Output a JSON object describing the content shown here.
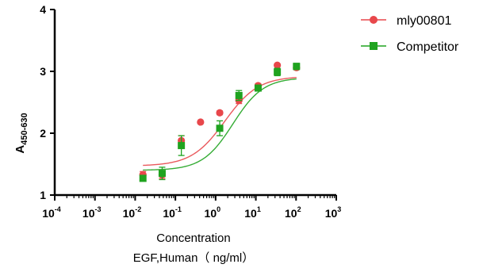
{
  "chart_data": {
    "type": "scatter",
    "x_scale": "log",
    "xlim": [
      0.0001,
      1000
    ],
    "ylim": [
      1,
      4
    ],
    "x_ticks": [
      {
        "base": "10",
        "exp": "-4"
      },
      {
        "base": "10",
        "exp": "-3"
      },
      {
        "base": "10",
        "exp": "-2"
      },
      {
        "base": "10",
        "exp": "-1"
      },
      {
        "base": "10",
        "exp": "0"
      },
      {
        "base": "10",
        "exp": "1"
      },
      {
        "base": "10",
        "exp": "2"
      },
      {
        "base": "10",
        "exp": "3"
      }
    ],
    "y_ticks": [
      "1",
      "2",
      "3",
      "4"
    ],
    "ylabel": {
      "main": "A",
      "sub": "450-630"
    },
    "xlabel": [
      "Concentration",
      "EGF,Human（ ng/ml）"
    ],
    "legend_position": "top-right",
    "grid": false,
    "series": [
      {
        "name": "mly00801",
        "color": "#e8474b",
        "marker": "circle",
        "x": [
          0.0156,
          0.0469,
          0.1406,
          0.4219,
          1.266,
          3.797,
          11.39,
          34.17,
          102.5
        ],
        "y": [
          1.33,
          1.33,
          1.88,
          2.18,
          2.33,
          2.53,
          2.77,
          3.1,
          3.06
        ],
        "error": [
          0.05,
          0.06,
          0.08,
          0.0,
          0.03,
          0.05,
          0.03,
          0.02,
          0.03
        ],
        "fit": {
          "bottom": 1.47,
          "top": 2.92,
          "logEC50": 0.23,
          "hill": 1.05
        }
      },
      {
        "name": "Competitor",
        "color": "#1fa31f",
        "marker": "square",
        "x": [
          0.0156,
          0.0469,
          0.1406,
          1.266,
          3.797,
          11.39,
          34.17,
          102.5
        ],
        "y": [
          1.27,
          1.35,
          1.8,
          2.08,
          2.61,
          2.73,
          2.99,
          3.08
        ],
        "error": [
          0.04,
          0.1,
          0.16,
          0.12,
          0.08,
          0.04,
          0.06,
          0.05
        ],
        "fit": {
          "bottom": 1.4,
          "top": 2.9,
          "logEC50": 0.43,
          "hill": 1.15
        }
      }
    ]
  }
}
